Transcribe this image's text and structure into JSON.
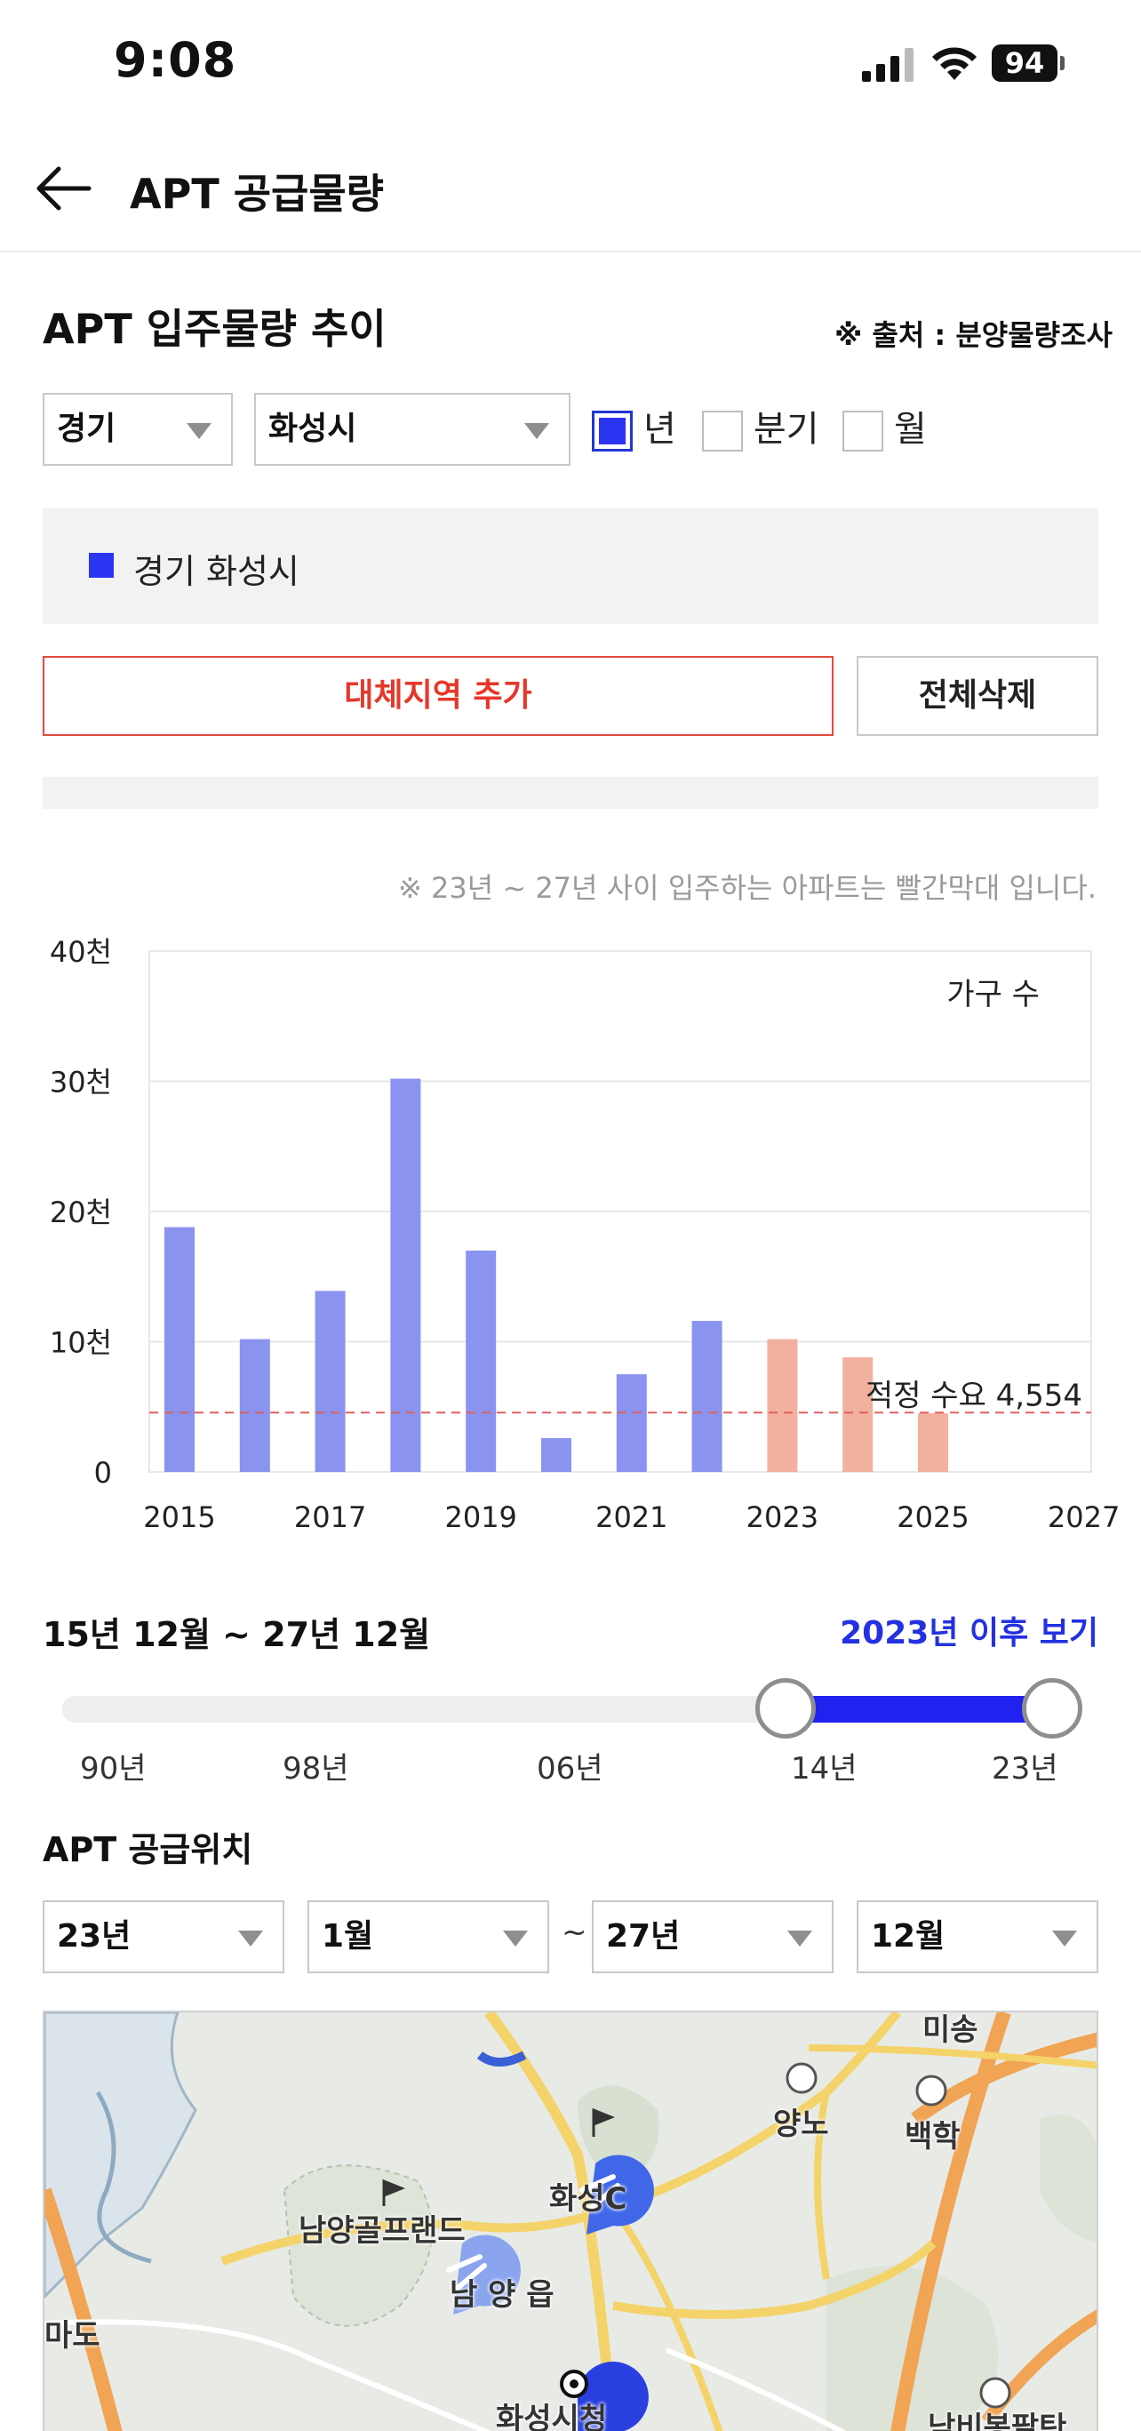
{
  "status": {
    "time": "9:08",
    "battery": "94"
  },
  "header": {
    "title": "APT 공급물량"
  },
  "section": {
    "title": "APT 입주물량 추이",
    "source": "※ 출처 : 분양물량조사"
  },
  "filters": {
    "province": "경기",
    "city": "화성시",
    "period_options": [
      {
        "label": "년",
        "checked": true
      },
      {
        "label": "분기",
        "checked": false
      },
      {
        "label": "월",
        "checked": false
      }
    ]
  },
  "legend": {
    "label": "경기 화성시",
    "color": "#2a35f2"
  },
  "buttons": {
    "add_region": "대체지역 추가",
    "clear_all": "전체삭제"
  },
  "chart_note": "※ 23년 ~ 27년 사이 입주하는 아파트는 빨간막대 입니다.",
  "chart_data": {
    "type": "bar",
    "ylabel": "가구 수",
    "yticks": [
      "0",
      "10천",
      "20천",
      "30천",
      "40천"
    ],
    "ylim": [
      0,
      40000
    ],
    "xticks": [
      "2015",
      "2017",
      "2019",
      "2021",
      "2023",
      "2025",
      "2027"
    ],
    "xlim": [
      2015,
      2027
    ],
    "categories": [
      2015,
      2016,
      2017,
      2018,
      2019,
      2020,
      2021,
      2022,
      2023,
      2024,
      2025
    ],
    "values": [
      18800,
      10200,
      13900,
      30200,
      17000,
      2600,
      7500,
      11600,
      10200,
      8800,
      4500
    ],
    "bar_colors": {
      "past": "#8a93f0",
      "future": "#f2b09f"
    },
    "future_from": 2023,
    "reference_line": {
      "label": "적정 수요 4,554",
      "value": 4554,
      "color": "#e0605a"
    },
    "grid": true
  },
  "range": {
    "text": "15년 12월 ~ 27년 12월",
    "link": "2023년 이후 보기",
    "ticks": [
      "90년",
      "98년",
      "06년",
      "14년",
      "23년"
    ]
  },
  "location": {
    "title": "APT 공급위치",
    "from_year": "23년",
    "from_month": "1월",
    "separator": "~",
    "to_year": "27년",
    "to_month": "12월"
  },
  "map": {
    "labels": [
      "남양골프랜드",
      "남 양 읍",
      "마도",
      "양노",
      "백학",
      "화성C",
      "화성시청",
      "남비봉팔탄",
      "미송"
    ]
  }
}
